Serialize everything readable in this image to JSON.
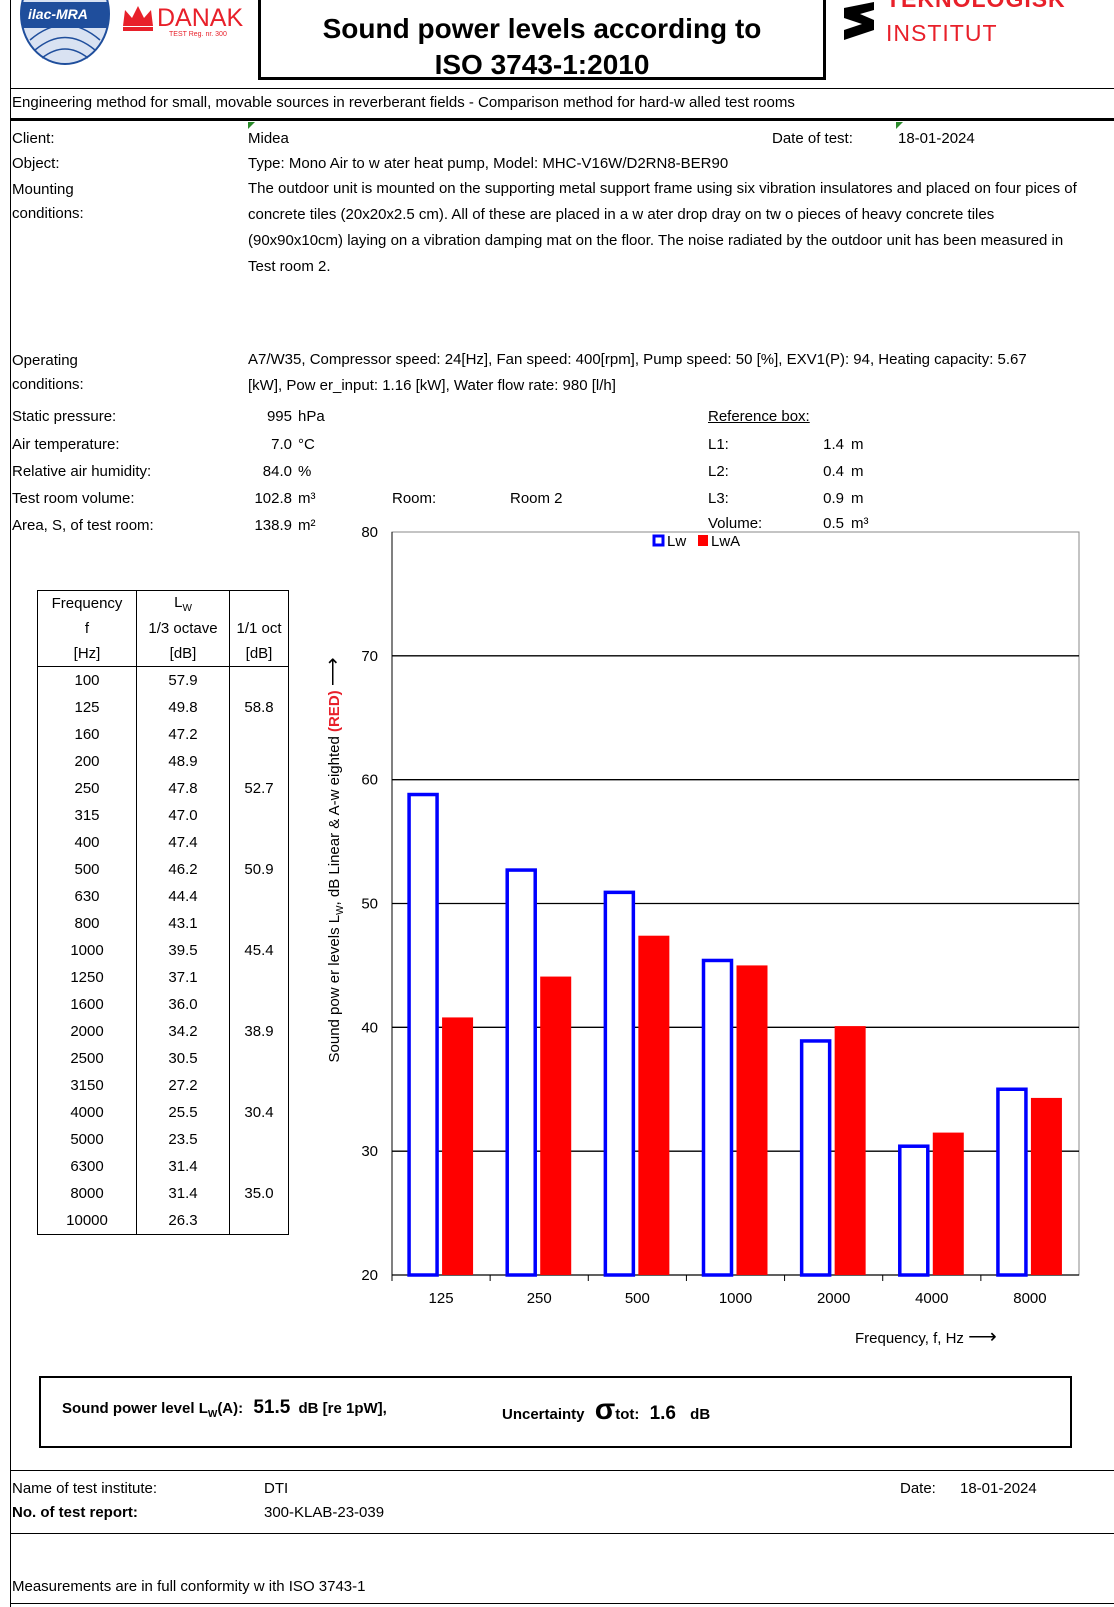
{
  "header": {
    "logo_ilac": "ilac-MRA",
    "logo_danak": "DANAK",
    "danak_reg": "TEST Reg. nr. 300",
    "title_line1": "Sound power levels according to",
    "title_line2": "ISO 3743-1:2010",
    "logo_ti_line1": "TEKNOLOGISK",
    "logo_ti_line2": "INSTITUT",
    "subtitle": "Engineering method for small, movable sources in reverberant fields - Comparison method for hard-w alled test rooms"
  },
  "info": {
    "client_label": "Client:",
    "client_value": "Midea",
    "date_of_test_label": "Date of test:",
    "date_of_test_value": "18-01-2024",
    "object_label": "Object:",
    "object_value": "Type: Mono  Air to w ater heat pump,  Model: MHC-V16W/D2RN8-BER90",
    "mounting_label_1": "Mounting",
    "mounting_label_2": "conditions:",
    "mounting_value": "The outdoor unit is mounted on the supporting metal support frame using six vibration insulatores and placed on four pices of concrete tiles (20x20x2.5 cm).  All of these are  placed  in a w ater drop dray on tw o pieces of heavy concrete tiles (90x90x10cm) laying on a vibration damping mat on the floor.  The noise radiated by the outdoor unit has been measured in Test room 2.",
    "operating_label_1": "Operating",
    "operating_label_2": "conditions:",
    "operating_value": "A7/W35, Compressor speed: 24[Hz], Fan speed: 400[rpm], Pump speed: 50 [%], EXV1(P): 94,  Heating capacity: 5.67 [kW], Pow er_input: 1.16 [kW], Water flow  rate: 980 [l/h]"
  },
  "conditions": {
    "static_pressure_label": "Static pressure:",
    "static_pressure_value": "995",
    "static_pressure_unit": "hPa",
    "air_temp_label": "Air temperature:",
    "air_temp_value": "7.0",
    "air_temp_unit": "°C",
    "humidity_label": "Relative air humidity:",
    "humidity_value": "84.0",
    "humidity_unit": "%",
    "volume_label": "Test room volume:",
    "volume_value": "102.8",
    "volume_unit": "m³",
    "area_label": "Area, S, of test room:",
    "area_value": "138.9",
    "area_unit": "m²",
    "room_label": "Room:",
    "room_value": "Room 2"
  },
  "reference_box": {
    "title": "Reference box:",
    "rows": [
      {
        "label": "L1:",
        "value": "1.4",
        "unit": "m"
      },
      {
        "label": "L2:",
        "value": "0.4",
        "unit": "m"
      },
      {
        "label": "L3:",
        "value": "0.9",
        "unit": "m"
      },
      {
        "label": "Volume:",
        "value": "0.5",
        "unit": "m³"
      }
    ]
  },
  "table": {
    "header": [
      [
        "Frequency",
        "L",
        "W",
        ""
      ],
      [
        "f",
        "1/3 octave",
        "",
        "1/1 oct"
      ],
      [
        "[Hz]",
        "[dB]",
        "",
        "[dB]"
      ]
    ],
    "rows": [
      [
        "100",
        "57.9",
        ""
      ],
      [
        "125",
        "49.8",
        "58.8"
      ],
      [
        "160",
        "47.2",
        ""
      ],
      [
        "200",
        "48.9",
        ""
      ],
      [
        "250",
        "47.8",
        "52.7"
      ],
      [
        "315",
        "47.0",
        ""
      ],
      [
        "400",
        "47.4",
        ""
      ],
      [
        "500",
        "46.2",
        "50.9"
      ],
      [
        "630",
        "44.4",
        ""
      ],
      [
        "800",
        "43.1",
        ""
      ],
      [
        "1000",
        "39.5",
        "45.4"
      ],
      [
        "1250",
        "37.1",
        ""
      ],
      [
        "1600",
        "36.0",
        ""
      ],
      [
        "2000",
        "34.2",
        "38.9"
      ],
      [
        "2500",
        "30.5",
        ""
      ],
      [
        "3150",
        "27.2",
        ""
      ],
      [
        "4000",
        "25.5",
        "30.4"
      ],
      [
        "5000",
        "23.5",
        ""
      ],
      [
        "6300",
        "31.4",
        ""
      ],
      [
        "8000",
        "31.4",
        "35.0"
      ],
      [
        "10000",
        "26.3",
        ""
      ]
    ]
  },
  "chart_data": {
    "type": "bar",
    "categories": [
      "125",
      "250",
      "500",
      "1000",
      "2000",
      "4000",
      "8000"
    ],
    "series": [
      {
        "name": "Lw",
        "values": [
          58.8,
          52.7,
          50.9,
          45.4,
          38.9,
          30.4,
          35.0
        ],
        "color": "#0000ff",
        "style": "outline"
      },
      {
        "name": "LwA",
        "values": [
          40.8,
          44.1,
          47.4,
          45.0,
          40.1,
          31.5,
          34.3
        ],
        "color": "#ff0000",
        "style": "filled"
      }
    ],
    "ylim": [
      20,
      80
    ],
    "yticks": [
      "20",
      "30",
      "40",
      "50",
      "60",
      "70",
      "80"
    ],
    "ylabel_main": "Sound pow er levels  L",
    "ylabel_sub": "W",
    "ylabel_rest": ",  dB Linear & A-w eighted ",
    "ylabel_red": "(RED)",
    "ylabel_arrow": "⟶",
    "xlabel": "Frequency, f, Hz",
    "xlabel_arrow": "⟶",
    "grid": true,
    "legend_position": "top-center"
  },
  "result": {
    "label_pre": "Sound power level L",
    "label_sub": "W",
    "label_post": "(A):",
    "value": "51.5",
    "unit": "dB  [re 1pW],",
    "uncertainty_label": "Uncertainty",
    "sigma": "σ",
    "tot_label": "tot:",
    "uncertainty_value": "1.6",
    "uncertainty_unit": "dB"
  },
  "footer": {
    "institute_label": "Name of test institute:",
    "institute_value": "DTI",
    "date_label": "Date:",
    "date_value": "18-01-2024",
    "report_label": "No. of test report:",
    "report_value": "300-KLAB-23-039",
    "conformity": "Measurements are in full conformity w ith ISO 3743-1"
  }
}
